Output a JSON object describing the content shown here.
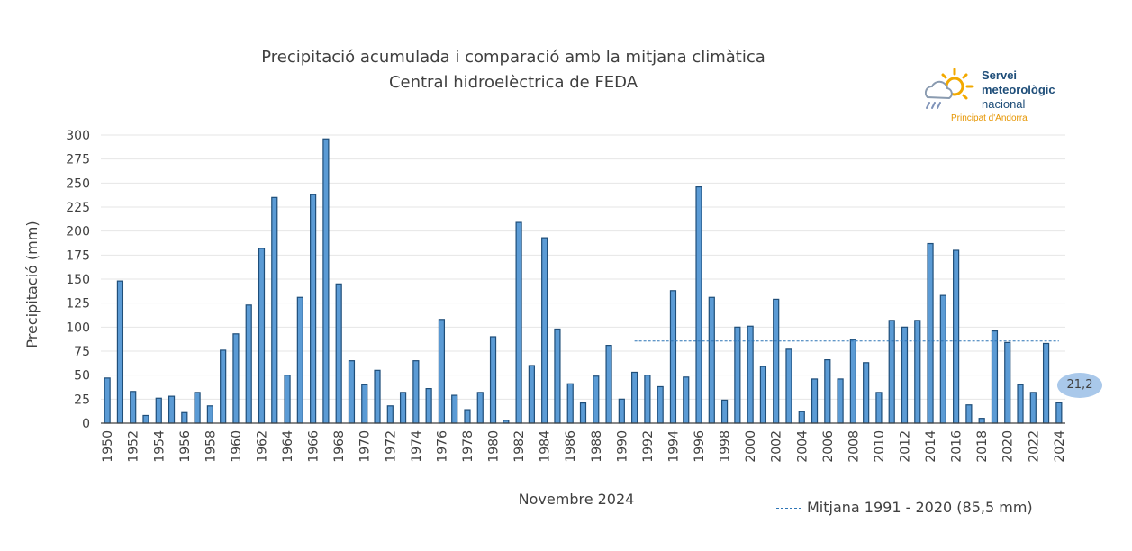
{
  "chart_data": {
    "type": "bar",
    "title": "Precipitació acumulada i comparació amb la mitjana climàtica",
    "subtitle": "Central hidroelèctrica de FEDA",
    "xlabel": "Novembre 2024",
    "ylabel": "Precipitació (mm)",
    "ylim": [
      0,
      300
    ],
    "yticks": [
      0,
      25,
      50,
      75,
      100,
      125,
      150,
      175,
      200,
      225,
      250,
      275,
      300
    ],
    "grid": true,
    "categories": [
      "1950",
      "1951",
      "1952",
      "1953",
      "1954",
      "1955",
      "1956",
      "1957",
      "1958",
      "1959",
      "1960",
      "1961",
      "1962",
      "1963",
      "1964",
      "1965",
      "1966",
      "1967",
      "1968",
      "1969",
      "1970",
      "1971",
      "1972",
      "1973",
      "1974",
      "1975",
      "1976",
      "1977",
      "1978",
      "1979",
      "1980",
      "1981",
      "1982",
      "1983",
      "1984",
      "1985",
      "1986",
      "1987",
      "1988",
      "1989",
      "1990",
      "1991",
      "1992",
      "1993",
      "1994",
      "1995",
      "1996",
      "1997",
      "1998",
      "1999",
      "2000",
      "2001",
      "2002",
      "2003",
      "2004",
      "2005",
      "2006",
      "2007",
      "2008",
      "2009",
      "2010",
      "2011",
      "2012",
      "2013",
      "2014",
      "2015",
      "2016",
      "2017",
      "2018",
      "2019",
      "2020",
      "2021",
      "2022",
      "2023",
      "2024"
    ],
    "tick_labels": [
      "1950",
      "1952",
      "1954",
      "1956",
      "1958",
      "1960",
      "1962",
      "1964",
      "1966",
      "1968",
      "1970",
      "1972",
      "1974",
      "1976",
      "1978",
      "1980",
      "1982",
      "1984",
      "1986",
      "1988",
      "1990",
      "1992",
      "1994",
      "1996",
      "1998",
      "2000",
      "2002",
      "2004",
      "2006",
      "2008",
      "2010",
      "2012",
      "2014",
      "2016",
      "2018",
      "2020",
      "2022",
      "2024"
    ],
    "series": [
      {
        "name": "Precipitació",
        "color": "#5b9bd5",
        "values": [
          47,
          148,
          33,
          8,
          26,
          28,
          11,
          32,
          18,
          76,
          93,
          123,
          182,
          235,
          50,
          131,
          238,
          296,
          145,
          65,
          40,
          55,
          18,
          32,
          65,
          36,
          108,
          29,
          14,
          32,
          90,
          3,
          209,
          60,
          193,
          98,
          41,
          21,
          49,
          81,
          25,
          53,
          50,
          38,
          138,
          48,
          246,
          131,
          24,
          100,
          101,
          59,
          129,
          77,
          12,
          46,
          66,
          46,
          87,
          63,
          32,
          107,
          100,
          107,
          187,
          133,
          180,
          19,
          5,
          96,
          84,
          40,
          32,
          83,
          21.2
        ]
      }
    ],
    "reference_line": {
      "label": "Mitjana 1991 - 2020 (85,5 mm)",
      "value": 85.5,
      "from": "1991",
      "to": "2024",
      "color": "#2e75b6"
    },
    "callout": {
      "category": "2024",
      "text": "21,2"
    }
  },
  "logo": {
    "line1": "Servei",
    "line2": "meteorològic",
    "line3": "nacional",
    "subtitle": "Principat d'Andorra"
  }
}
